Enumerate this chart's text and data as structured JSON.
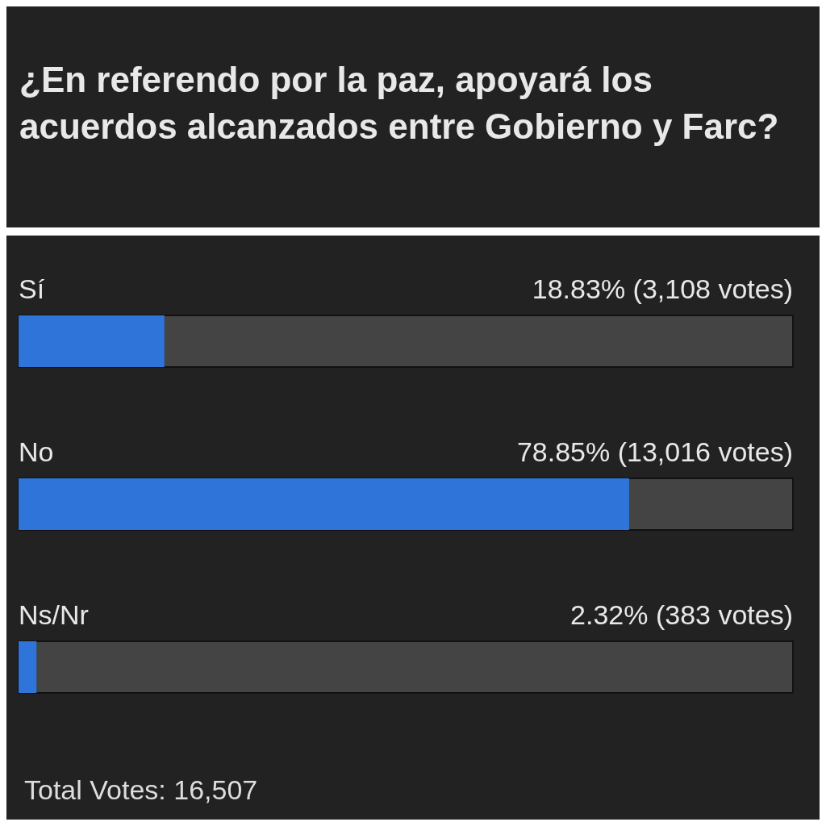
{
  "chart_data": {
    "type": "bar",
    "orientation": "horizontal",
    "title": "¿En referendo por la paz, apoyará los acuerdos alcanzados entre Gobierno y Farc?",
    "categories": [
      "Sí",
      "No",
      "Ns/Nr"
    ],
    "values": [
      18.83,
      78.85,
      2.32
    ],
    "value_labels": [
      "18.83%  (3,108 votes)",
      "78.85%  (13,016 votes)",
      "2.32%  (383 votes)"
    ],
    "color": "#2f74d8",
    "xlim": [
      0,
      100
    ],
    "tick_labels": false,
    "annotations": [
      "Total Votes: 16,507"
    ]
  }
}
